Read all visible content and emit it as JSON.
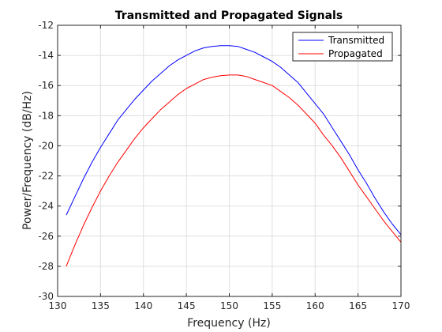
{
  "chart_data": {
    "type": "line",
    "title": "Transmitted and Propagated Signals",
    "xlabel": "Frequency (Hz)",
    "ylabel": "Power/Frequency (dB/Hz)",
    "xlim": [
      130,
      170
    ],
    "ylim": [
      -30,
      -12
    ],
    "xticks": [
      130,
      135,
      140,
      145,
      150,
      155,
      160,
      165,
      170
    ],
    "yticks": [
      -30,
      -28,
      -26,
      -24,
      -22,
      -20,
      -18,
      -16,
      -14,
      -12
    ],
    "grid": true,
    "legend_position": "top-right",
    "series": [
      {
        "name": "Transmitted",
        "color": "#0000ff",
        "x": [
          131,
          132,
          133,
          134,
          135,
          136,
          137,
          138,
          139,
          140,
          141,
          142,
          143,
          144,
          145,
          146,
          147,
          148,
          149,
          150,
          151,
          152,
          153,
          154,
          155,
          156,
          157,
          158,
          159,
          160,
          161,
          162,
          163,
          164,
          165,
          166,
          167,
          168,
          169,
          170
        ],
        "y": [
          -24.6,
          -23.4,
          -22.2,
          -21.1,
          -20.1,
          -19.2,
          -18.3,
          -17.6,
          -16.9,
          -16.3,
          -15.7,
          -15.2,
          -14.7,
          -14.3,
          -14.0,
          -13.7,
          -13.5,
          -13.4,
          -13.35,
          -13.35,
          -13.4,
          -13.6,
          -13.8,
          -14.1,
          -14.4,
          -14.8,
          -15.3,
          -15.8,
          -16.5,
          -17.2,
          -17.9,
          -18.8,
          -19.7,
          -20.6,
          -21.6,
          -22.5,
          -23.5,
          -24.4,
          -25.2,
          -25.9
        ]
      },
      {
        "name": "Propagated",
        "color": "#ff0000",
        "x": [
          131,
          132,
          133,
          134,
          135,
          136,
          137,
          138,
          139,
          140,
          141,
          142,
          143,
          144,
          145,
          146,
          147,
          148,
          149,
          150,
          151,
          152,
          153,
          154,
          155,
          156,
          157,
          158,
          159,
          160,
          161,
          162,
          163,
          164,
          165,
          166,
          167,
          168,
          169,
          170
        ],
        "y": [
          -28.0,
          -26.6,
          -25.3,
          -24.1,
          -23.0,
          -22.0,
          -21.1,
          -20.3,
          -19.5,
          -18.8,
          -18.2,
          -17.6,
          -17.1,
          -16.6,
          -16.2,
          -15.9,
          -15.6,
          -15.45,
          -15.35,
          -15.3,
          -15.3,
          -15.4,
          -15.6,
          -15.8,
          -16.0,
          -16.4,
          -16.8,
          -17.3,
          -17.9,
          -18.5,
          -19.3,
          -20.0,
          -20.8,
          -21.7,
          -22.6,
          -23.4,
          -24.2,
          -25.0,
          -25.7,
          -26.4
        ]
      }
    ]
  }
}
